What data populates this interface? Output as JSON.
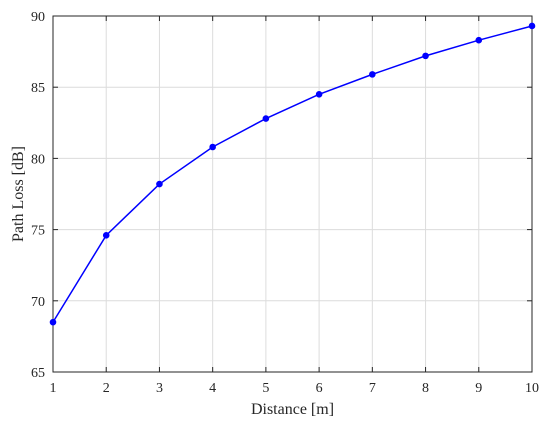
{
  "chart_data": {
    "type": "line",
    "title": "",
    "xlabel": "Distance [m]",
    "ylabel": "Path Loss [dB]",
    "xlim": [
      1,
      10
    ],
    "ylim": [
      65,
      90
    ],
    "xticks": [
      1,
      2,
      3,
      4,
      5,
      6,
      7,
      8,
      9,
      10
    ],
    "yticks": [
      65,
      70,
      75,
      80,
      85,
      90
    ],
    "grid": true,
    "legend": "none",
    "series": [
      {
        "x": [
          1,
          2,
          3,
          4,
          5,
          6,
          7,
          8,
          9,
          10
        ],
        "y": [
          68.5,
          74.6,
          78.2,
          80.8,
          82.8,
          84.5,
          85.9,
          87.2,
          88.3,
          89.3
        ],
        "color": "#0000ff",
        "marker": "circle"
      }
    ]
  }
}
